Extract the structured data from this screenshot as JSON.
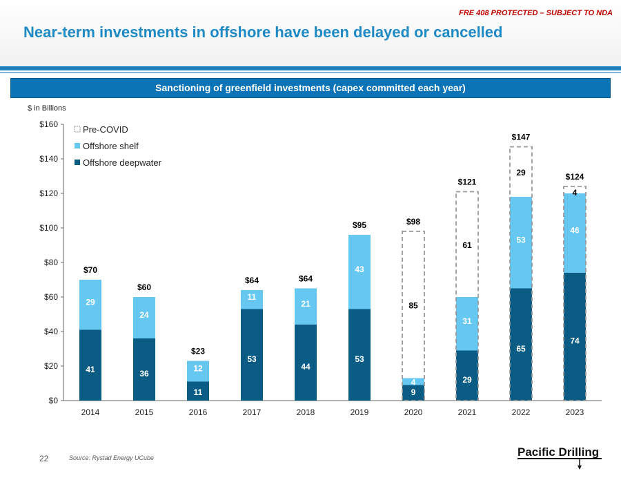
{
  "header": {
    "protection_notice": "FRE 408 PROTECTED – SUBJECT TO NDA",
    "title": "Near-term investments in offshore have been delayed or cancelled"
  },
  "subheader": "Sanctioning of greenfield investments (capex committed each year)",
  "units_label": "$ in Billions",
  "footer": {
    "page_number": "22",
    "source": "Source: Rystad Energy UCube",
    "logo_text": "Pacific Drilling"
  },
  "colors": {
    "deepwater": "#0b5c85",
    "shelf": "#66c7f1",
    "precovid_border": "#999999",
    "accent": "#1a82c0"
  },
  "chart_data": {
    "type": "bar",
    "stacked": true,
    "title": "Sanctioning of greenfield investments (capex committed each year)",
    "ylabel": "$ in Billions",
    "ylim": [
      0,
      160
    ],
    "yticks": [
      0,
      20,
      40,
      60,
      80,
      100,
      120,
      140,
      160
    ],
    "ytick_labels": [
      "$0",
      "$20",
      "$40",
      "$60",
      "$80",
      "$100",
      "$120",
      "$140",
      "$160"
    ],
    "categories": [
      "2014",
      "2015",
      "2016",
      "2017",
      "2018",
      "2019",
      "2020",
      "2021",
      "2022",
      "2023"
    ],
    "series": [
      {
        "name": "Offshore deepwater",
        "values": [
          41,
          36,
          11,
          53,
          44,
          53,
          9,
          29,
          65,
          74
        ]
      },
      {
        "name": "Offshore shelf",
        "values": [
          29,
          24,
          12,
          11,
          21,
          43,
          4,
          31,
          53,
          46
        ]
      },
      {
        "name": "Pre-COVID",
        "values": [
          null,
          null,
          null,
          null,
          null,
          null,
          85,
          61,
          29,
          4
        ]
      }
    ],
    "totals": [
      "$70",
      "$60",
      "$23",
      "$64",
      "$64",
      "$95",
      "$98",
      "$121",
      "$147",
      "$124"
    ],
    "legend": [
      "Pre-COVID",
      "Offshore shelf",
      "Offshore deepwater"
    ],
    "legend_position": "top-left"
  }
}
